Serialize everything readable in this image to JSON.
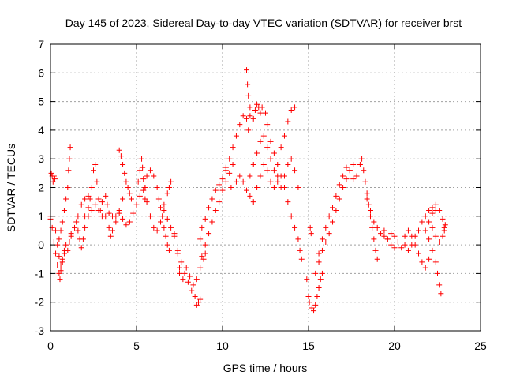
{
  "chart_data": {
    "type": "scatter",
    "title": "Day 145 of 2023, Sidereal Day-to-day VTEC variation (SDTVAR) for receiver brst",
    "xlabel": "GPS time / hours",
    "ylabel": "SDTVAR / TECUs",
    "xlim": [
      0,
      25
    ],
    "ylim": [
      -3,
      7
    ],
    "xticks": [
      0,
      5,
      10,
      15,
      20,
      25
    ],
    "yticks": [
      -3,
      -2,
      -1,
      0,
      1,
      2,
      3,
      4,
      5,
      6,
      7
    ],
    "grid": true,
    "marker": "+",
    "color": "#ff0000",
    "series": [
      {
        "name": "SDTVAR",
        "points": [
          [
            0.0,
            1.0
          ],
          [
            0.05,
            2.5
          ],
          [
            0.1,
            2.4
          ],
          [
            0.15,
            2.2
          ],
          [
            0.2,
            2.4
          ],
          [
            0.25,
            2.3
          ],
          [
            0.0,
            0.9
          ],
          [
            0.1,
            0.6
          ],
          [
            0.2,
            0.1
          ],
          [
            0.3,
            -0.3
          ],
          [
            0.4,
            -0.7
          ],
          [
            0.5,
            -1.0
          ],
          [
            0.55,
            -1.2
          ],
          [
            0.6,
            -0.9
          ],
          [
            0.7,
            -0.6
          ],
          [
            0.8,
            -0.3
          ],
          [
            0.3,
            0.5
          ],
          [
            0.4,
            0.0
          ],
          [
            0.5,
            -0.4
          ],
          [
            0.6,
            -0.7
          ],
          [
            0.7,
            -0.5
          ],
          [
            0.8,
            -0.2
          ],
          [
            0.9,
            0.0
          ],
          [
            1.0,
            -0.2
          ],
          [
            1.1,
            0.1
          ],
          [
            1.2,
            0.4
          ],
          [
            0.5,
            0.2
          ],
          [
            0.6,
            0.5
          ],
          [
            0.7,
            0.8
          ],
          [
            0.8,
            1.2
          ],
          [
            0.9,
            1.6
          ],
          [
            1.0,
            2.0
          ],
          [
            1.05,
            2.6
          ],
          [
            1.1,
            3.0
          ],
          [
            1.15,
            3.4
          ],
          [
            1.2,
            0.3
          ],
          [
            1.4,
            0.6
          ],
          [
            1.6,
            1.0
          ],
          [
            1.8,
            1.4
          ],
          [
            2.0,
            1.6
          ],
          [
            2.2,
            1.7
          ],
          [
            2.3,
            1.6
          ],
          [
            1.5,
            0.8
          ],
          [
            1.6,
            0.5
          ],
          [
            1.7,
            0.2
          ],
          [
            1.8,
            -0.1
          ],
          [
            1.9,
            0.2
          ],
          [
            2.0,
            0.6
          ],
          [
            2.0,
            1.0
          ],
          [
            2.2,
            1.3
          ],
          [
            2.4,
            2.0
          ],
          [
            2.5,
            2.6
          ],
          [
            2.6,
            2.8
          ],
          [
            2.7,
            2.2
          ],
          [
            2.8,
            1.6
          ],
          [
            2.9,
            1.2
          ],
          [
            3.0,
            1.0
          ],
          [
            2.2,
            1.0
          ],
          [
            2.4,
            1.2
          ],
          [
            2.6,
            1.4
          ],
          [
            2.8,
            1.2
          ],
          [
            3.0,
            1.5
          ],
          [
            3.2,
            1.7
          ],
          [
            3.3,
            1.4
          ],
          [
            3.4,
            1.1
          ],
          [
            3.6,
            1.0
          ],
          [
            3.8,
            1.0
          ],
          [
            4.0,
            1.1
          ],
          [
            4.2,
            0.9
          ],
          [
            4.4,
            0.7
          ],
          [
            4.6,
            0.8
          ],
          [
            3.2,
            1.0
          ],
          [
            3.4,
            0.6
          ],
          [
            3.5,
            0.3
          ],
          [
            3.6,
            0.5
          ],
          [
            3.8,
            0.8
          ],
          [
            4.0,
            1.2
          ],
          [
            4.2,
            1.6
          ],
          [
            4.0,
            3.3
          ],
          [
            4.1,
            3.1
          ],
          [
            4.2,
            2.8
          ],
          [
            4.3,
            2.5
          ],
          [
            4.4,
            2.2
          ],
          [
            4.5,
            2.0
          ],
          [
            4.6,
            1.8
          ],
          [
            4.7,
            1.6
          ],
          [
            4.6,
            0.8
          ],
          [
            4.8,
            1.1
          ],
          [
            5.0,
            1.4
          ],
          [
            5.2,
            1.7
          ],
          [
            5.4,
            1.9
          ],
          [
            5.5,
            1.6
          ],
          [
            5.1,
            2.2
          ],
          [
            5.2,
            2.6
          ],
          [
            5.3,
            3.0
          ],
          [
            5.35,
            2.7
          ],
          [
            5.4,
            2.3
          ],
          [
            5.5,
            2.0
          ],
          [
            5.5,
            2.0
          ],
          [
            5.6,
            2.4
          ],
          [
            5.8,
            2.6
          ],
          [
            6.0,
            2.4
          ],
          [
            6.2,
            2.0
          ],
          [
            6.3,
            1.6
          ],
          [
            6.4,
            1.3
          ],
          [
            6.5,
            1.0
          ],
          [
            6.6,
            0.6
          ],
          [
            6.7,
            0.3
          ],
          [
            6.8,
            0.0
          ],
          [
            6.9,
            -0.2
          ],
          [
            5.6,
            1.5
          ],
          [
            5.8,
            1.0
          ],
          [
            6.0,
            0.6
          ],
          [
            6.2,
            0.5
          ],
          [
            6.4,
            0.8
          ],
          [
            6.6,
            1.4
          ],
          [
            6.8,
            1.8
          ],
          [
            6.9,
            2.0
          ],
          [
            7.0,
            2.2
          ],
          [
            6.6,
            1.2
          ],
          [
            6.8,
            0.9
          ],
          [
            7.0,
            0.6
          ],
          [
            7.2,
            0.3
          ],
          [
            7.4,
            -0.3
          ],
          [
            7.5,
            -0.8
          ],
          [
            7.2,
            0.4
          ],
          [
            7.4,
            -0.2
          ],
          [
            7.6,
            -0.6
          ],
          [
            7.8,
            -1.0
          ],
          [
            8.0,
            -1.3
          ],
          [
            8.2,
            -1.6
          ],
          [
            8.4,
            -1.8
          ],
          [
            8.5,
            -2.1
          ],
          [
            8.6,
            -2.0
          ],
          [
            8.7,
            -1.9
          ],
          [
            7.5,
            -1.0
          ],
          [
            7.7,
            -1.2
          ],
          [
            7.9,
            -0.8
          ],
          [
            8.1,
            -1.1
          ],
          [
            8.3,
            -1.4
          ],
          [
            8.5,
            -1.2
          ],
          [
            8.7,
            -0.8
          ],
          [
            8.9,
            -0.5
          ],
          [
            9.0,
            -0.3
          ],
          [
            8.7,
            0.2
          ],
          [
            8.8,
            0.6
          ],
          [
            9.0,
            0.9
          ],
          [
            9.2,
            1.3
          ],
          [
            9.4,
            1.6
          ],
          [
            9.6,
            1.9
          ],
          [
            9.8,
            2.1
          ],
          [
            10.0,
            2.3
          ],
          [
            10.2,
            2.6
          ],
          [
            8.8,
            -0.4
          ],
          [
            9.0,
            0.0
          ],
          [
            9.2,
            0.4
          ],
          [
            9.4,
            0.8
          ],
          [
            9.6,
            1.2
          ],
          [
            9.8,
            1.5
          ],
          [
            10.0,
            1.9
          ],
          [
            10.2,
            2.2
          ],
          [
            10.4,
            2.5
          ],
          [
            10.6,
            2.8
          ],
          [
            10.2,
            2.7
          ],
          [
            10.4,
            3.0
          ],
          [
            10.6,
            3.4
          ],
          [
            10.8,
            3.8
          ],
          [
            11.0,
            4.2
          ],
          [
            11.2,
            4.5
          ],
          [
            11.4,
            4.4
          ],
          [
            11.5,
            4.0
          ],
          [
            11.6,
            4.5
          ],
          [
            11.4,
            6.1
          ],
          [
            11.45,
            5.6
          ],
          [
            11.5,
            5.2
          ],
          [
            11.6,
            4.8
          ],
          [
            10.5,
            2.0
          ],
          [
            10.8,
            2.2
          ],
          [
            11.0,
            2.4
          ],
          [
            11.2,
            2.2
          ],
          [
            11.4,
            1.9
          ],
          [
            11.6,
            1.7
          ],
          [
            11.8,
            1.5
          ],
          [
            11.6,
            2.4
          ],
          [
            11.8,
            2.8
          ],
          [
            12.0,
            3.2
          ],
          [
            12.2,
            3.6
          ],
          [
            12.4,
            3.8
          ],
          [
            12.6,
            3.4
          ],
          [
            12.8,
            3.0
          ],
          [
            11.8,
            4.4
          ],
          [
            11.9,
            4.7
          ],
          [
            12.0,
            4.9
          ],
          [
            12.1,
            4.8
          ],
          [
            12.2,
            4.6
          ],
          [
            12.3,
            4.8
          ],
          [
            12.5,
            4.6
          ],
          [
            12.6,
            4.2
          ],
          [
            12.0,
            2.0
          ],
          [
            12.2,
            2.4
          ],
          [
            12.4,
            2.8
          ],
          [
            12.6,
            2.6
          ],
          [
            12.8,
            2.2
          ],
          [
            13.0,
            2.0
          ],
          [
            13.2,
            2.4
          ],
          [
            12.8,
            3.6
          ],
          [
            13.0,
            3.2
          ],
          [
            13.2,
            2.8
          ],
          [
            13.4,
            2.4
          ],
          [
            13.6,
            2.0
          ],
          [
            13.8,
            1.5
          ],
          [
            14.0,
            1.0
          ],
          [
            14.2,
            0.6
          ],
          [
            14.4,
            0.2
          ],
          [
            14.5,
            -0.2
          ],
          [
            14.6,
            -0.5
          ],
          [
            13.4,
            3.4
          ],
          [
            13.6,
            3.8
          ],
          [
            13.8,
            4.3
          ],
          [
            14.0,
            4.7
          ],
          [
            14.2,
            4.8
          ],
          [
            13.0,
            2.6
          ],
          [
            13.2,
            2.2
          ],
          [
            13.4,
            2.0
          ],
          [
            13.6,
            2.4
          ],
          [
            13.8,
            2.8
          ],
          [
            14.0,
            3.0
          ],
          [
            14.2,
            2.6
          ],
          [
            14.4,
            2.0
          ],
          [
            14.9,
            -1.2
          ],
          [
            15.0,
            -1.8
          ],
          [
            15.05,
            -2.0
          ],
          [
            15.1,
            0.6
          ],
          [
            15.15,
            0.4
          ],
          [
            15.2,
            -2.2
          ],
          [
            15.3,
            -2.3
          ],
          [
            15.4,
            -2.1
          ],
          [
            15.5,
            -1.8
          ],
          [
            15.6,
            -1.5
          ],
          [
            15.7,
            -1.2
          ],
          [
            15.8,
            -1.0
          ],
          [
            15.4,
            -1.0
          ],
          [
            15.6,
            -0.6
          ],
          [
            15.8,
            -0.2
          ],
          [
            16.0,
            0.1
          ],
          [
            16.2,
            0.4
          ],
          [
            16.4,
            0.8
          ],
          [
            16.6,
            1.2
          ],
          [
            16.8,
            1.6
          ],
          [
            17.0,
            2.0
          ],
          [
            17.2,
            2.3
          ],
          [
            17.4,
            2.6
          ],
          [
            17.6,
            2.8
          ],
          [
            15.6,
            -0.3
          ],
          [
            15.8,
            0.2
          ],
          [
            16.0,
            0.6
          ],
          [
            16.2,
            1.0
          ],
          [
            16.4,
            1.3
          ],
          [
            16.6,
            1.7
          ],
          [
            16.8,
            2.1
          ],
          [
            17.0,
            2.4
          ],
          [
            17.2,
            2.7
          ],
          [
            17.4,
            2.6
          ],
          [
            17.6,
            2.3
          ],
          [
            17.8,
            2.4
          ],
          [
            18.0,
            2.8
          ],
          [
            18.1,
            3.0
          ],
          [
            18.2,
            2.6
          ],
          [
            18.3,
            2.2
          ],
          [
            18.4,
            1.8
          ],
          [
            18.5,
            1.4
          ],
          [
            18.6,
            1.0
          ],
          [
            18.7,
            0.6
          ],
          [
            18.8,
            0.2
          ],
          [
            18.9,
            -0.2
          ],
          [
            19.0,
            -0.5
          ],
          [
            18.4,
            1.6
          ],
          [
            18.6,
            1.2
          ],
          [
            18.8,
            0.8
          ],
          [
            19.0,
            0.6
          ],
          [
            19.2,
            0.4
          ],
          [
            19.4,
            0.3
          ],
          [
            19.6,
            0.2
          ],
          [
            19.8,
            0.4
          ],
          [
            20.0,
            0.3
          ],
          [
            19.4,
            0.5
          ],
          [
            19.6,
            0.2
          ],
          [
            19.8,
            0.0
          ],
          [
            20.0,
            -0.1
          ],
          [
            20.2,
            0.1
          ],
          [
            20.4,
            -0.1
          ],
          [
            20.6,
            0.0
          ],
          [
            20.6,
            0.3
          ],
          [
            20.8,
            0.5
          ],
          [
            21.0,
            0.3
          ],
          [
            21.2,
            0.0
          ],
          [
            21.4,
            -0.3
          ],
          [
            21.6,
            -0.6
          ],
          [
            21.8,
            -0.8
          ],
          [
            22.0,
            -0.5
          ],
          [
            20.8,
            -0.2
          ],
          [
            21.0,
            0.0
          ],
          [
            21.2,
            0.3
          ],
          [
            21.4,
            0.5
          ],
          [
            21.6,
            0.8
          ],
          [
            21.8,
            1.0
          ],
          [
            22.0,
            1.2
          ],
          [
            22.2,
            1.3
          ],
          [
            22.4,
            1.2
          ],
          [
            21.8,
            0.5
          ],
          [
            22.0,
            0.8
          ],
          [
            22.2,
            1.1
          ],
          [
            22.4,
            1.4
          ],
          [
            22.6,
            1.2
          ],
          [
            22.8,
            0.9
          ],
          [
            22.9,
            0.6
          ],
          [
            22.0,
            0.2
          ],
          [
            22.2,
            -0.2
          ],
          [
            22.4,
            -0.6
          ],
          [
            22.5,
            -1.0
          ],
          [
            22.6,
            -1.4
          ],
          [
            22.7,
            -1.7
          ],
          [
            22.2,
            0.6
          ],
          [
            22.4,
            0.3
          ],
          [
            22.6,
            0.1
          ],
          [
            22.8,
            0.3
          ],
          [
            22.9,
            0.5
          ],
          [
            22.95,
            0.7
          ]
        ]
      }
    ]
  }
}
